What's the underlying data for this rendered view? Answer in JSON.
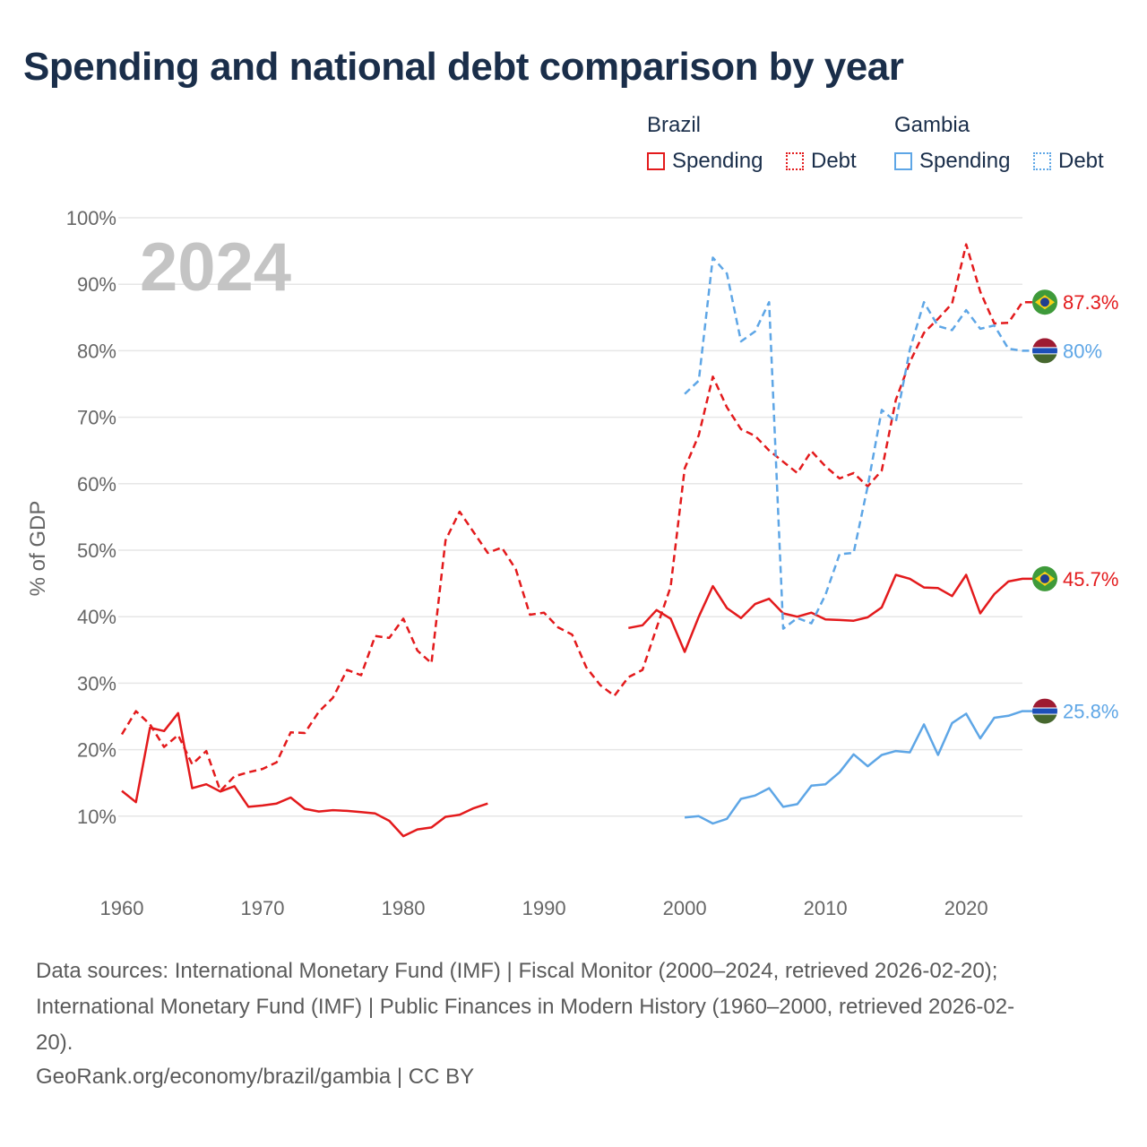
{
  "title": "Spending and national debt comparison by year",
  "legend": {
    "groups": [
      {
        "country": "Brazil",
        "items": [
          {
            "label": "Spending",
            "style": "solid",
            "color": "#e31a1c"
          },
          {
            "label": "Debt",
            "style": "dotted",
            "color": "#e31a1c"
          }
        ]
      },
      {
        "country": "Gambia",
        "items": [
          {
            "label": "Spending",
            "style": "solid",
            "color": "#5ea6e6"
          },
          {
            "label": "Debt",
            "style": "dotted",
            "color": "#5ea6e6"
          }
        ]
      }
    ]
  },
  "colors": {
    "brazil": "#e31a1c",
    "gambia": "#5ea6e6",
    "year_watermark": "#c4c4c4",
    "grid": "#e6e6e6",
    "axis_text": "#666666"
  },
  "source": {
    "line1": "Data sources: International Monetary Fund (IMF) | Fiscal Monitor (2000–2024, retrieved 2026-02-20);",
    "line2": "International Monetary Fund (IMF) | Public Finances in Modern History (1960–2000, retrieved 2026-02-",
    "line3": "20).",
    "line4": "GeoRank.org/economy/brazil/gambia | CC BY"
  },
  "chart_data": {
    "type": "line",
    "year_label": "2024",
    "ylabel": "% of GDP",
    "xlim": [
      1960,
      2025
    ],
    "ylim": [
      0,
      100
    ],
    "yticks": [
      10,
      20,
      30,
      40,
      50,
      60,
      70,
      80,
      90,
      100
    ],
    "ytick_labels": [
      "10%",
      "20%",
      "30%",
      "40%",
      "50%",
      "60%",
      "70%",
      "80%",
      "90%",
      "100%"
    ],
    "xticks": [
      1960,
      1970,
      1980,
      1990,
      2000,
      2010,
      2020
    ],
    "xtick_labels": [
      "1960",
      "1970",
      "1980",
      "1990",
      "2000",
      "2010",
      "2020"
    ],
    "series": [
      {
        "name": "Brazil Spending",
        "country": "Brazil",
        "metric": "Spending",
        "color": "#e31a1c",
        "dashed": false,
        "end_label": "45.7%",
        "flag": "brazil",
        "x": [
          1960,
          1961,
          1962,
          1963,
          1964,
          1965,
          1966,
          1967,
          1968,
          1969,
          1970,
          1971,
          1972,
          1973,
          1974,
          1975,
          1976,
          1977,
          1978,
          1979,
          1980,
          1981,
          1982,
          1983,
          1984,
          1985,
          1986,
          1987,
          1988,
          1989,
          1990,
          1991,
          1992,
          1993,
          1994,
          1995,
          1996,
          1997,
          1998,
          1999,
          2000,
          2001,
          2002,
          2003,
          2004,
          2005,
          2006,
          2007,
          2008,
          2009,
          2010,
          2011,
          2012,
          2013,
          2014,
          2015,
          2016,
          2017,
          2018,
          2019,
          2020,
          2021,
          2022,
          2023,
          2024,
          2025
        ],
        "values": [
          13.8,
          12.1,
          23.3,
          22.8,
          25.5,
          14.2,
          14.8,
          13.7,
          14.5,
          11.4,
          11.6,
          11.9,
          12.8,
          11.1,
          10.7,
          10.9,
          10.8,
          10.6,
          10.4,
          9.3,
          7.0,
          8.0,
          8.3,
          9.9,
          10.2,
          11.2,
          11.9,
          null,
          null,
          null,
          null,
          null,
          null,
          null,
          null,
          null,
          38.3,
          38.7,
          41.0,
          39.7,
          34.7,
          40.0,
          44.6,
          41.3,
          39.8,
          41.9,
          42.7,
          40.5,
          40.0,
          40.6,
          39.6,
          39.5,
          39.4,
          39.9,
          41.4,
          46.3,
          45.7,
          44.4,
          44.3,
          43.1,
          46.3,
          40.5,
          43.4,
          45.3,
          45.7,
          45.7
        ]
      },
      {
        "name": "Brazil Debt",
        "country": "Brazil",
        "metric": "Debt",
        "color": "#e31a1c",
        "dashed": true,
        "end_label": "87.3%",
        "flag": "brazil",
        "x": [
          1960,
          1961,
          1962,
          1963,
          1964,
          1965,
          1966,
          1967,
          1968,
          1969,
          1970,
          1971,
          1972,
          1973,
          1974,
          1975,
          1976,
          1977,
          1978,
          1979,
          1980,
          1981,
          1982,
          1983,
          1984,
          1985,
          1986,
          1987,
          1988,
          1989,
          1990,
          1991,
          1992,
          1993,
          1994,
          1995,
          1996,
          1997,
          1998,
          1999,
          2000,
          2001,
          2002,
          2003,
          2004,
          2005,
          2006,
          2007,
          2008,
          2009,
          2010,
          2011,
          2012,
          2013,
          2014,
          2015,
          2016,
          2017,
          2018,
          2019,
          2020,
          2021,
          2022,
          2023,
          2024,
          2025
        ],
        "values": [
          22.3,
          25.8,
          23.8,
          20.4,
          22.2,
          17.8,
          19.8,
          13.8,
          16.0,
          16.6,
          17.1,
          18.1,
          22.6,
          22.5,
          25.7,
          27.8,
          32.0,
          31.2,
          37.1,
          36.8,
          39.7,
          34.9,
          33.0,
          51.5,
          55.8,
          52.7,
          49.6,
          50.4,
          47.1,
          40.3,
          40.6,
          38.4,
          37.3,
          32.4,
          29.7,
          28.1,
          30.9,
          32.0,
          38.3,
          44.5,
          62.3,
          67.3,
          76.1,
          71.5,
          68.2,
          67.2,
          65.0,
          63.3,
          61.6,
          64.9,
          62.6,
          60.8,
          61.6,
          59.6,
          62.0,
          72.6,
          78.3,
          82.7,
          84.8,
          87.1,
          96.0,
          88.9,
          84.1,
          84.2,
          87.3,
          87.3
        ]
      },
      {
        "name": "Gambia Spending",
        "country": "Gambia",
        "metric": "Spending",
        "color": "#5ea6e6",
        "dashed": false,
        "end_label": "25.8%",
        "flag": "gambia",
        "x": [
          2000,
          2001,
          2002,
          2003,
          2004,
          2005,
          2006,
          2007,
          2008,
          2009,
          2010,
          2011,
          2012,
          2013,
          2014,
          2015,
          2016,
          2017,
          2018,
          2019,
          2020,
          2021,
          2022,
          2023,
          2024,
          2025
        ],
        "values": [
          9.8,
          10.0,
          8.9,
          9.6,
          12.6,
          13.1,
          14.2,
          11.4,
          11.8,
          14.6,
          14.8,
          16.6,
          19.3,
          17.5,
          19.2,
          19.8,
          19.6,
          23.8,
          19.2,
          24.0,
          25.4,
          21.7,
          24.8,
          25.1,
          25.8,
          25.8
        ]
      },
      {
        "name": "Gambia Debt",
        "country": "Gambia",
        "metric": "Debt",
        "color": "#5ea6e6",
        "dashed": true,
        "end_label": "80%",
        "flag": "gambia",
        "x": [
          2000,
          2001,
          2002,
          2003,
          2004,
          2005,
          2006,
          2007,
          2008,
          2009,
          2010,
          2011,
          2012,
          2013,
          2014,
          2015,
          2016,
          2017,
          2018,
          2019,
          2020,
          2021,
          2022,
          2023,
          2024,
          2025
        ],
        "values": [
          73.5,
          75.5,
          94.0,
          91.6,
          81.4,
          82.9,
          87.3,
          38.2,
          39.8,
          39.0,
          43.3,
          49.4,
          49.6,
          59.6,
          71.1,
          69.3,
          80.2,
          87.3,
          83.7,
          83.1,
          86.1,
          83.3,
          83.8,
          80.3,
          80.0,
          80.0
        ]
      }
    ]
  }
}
